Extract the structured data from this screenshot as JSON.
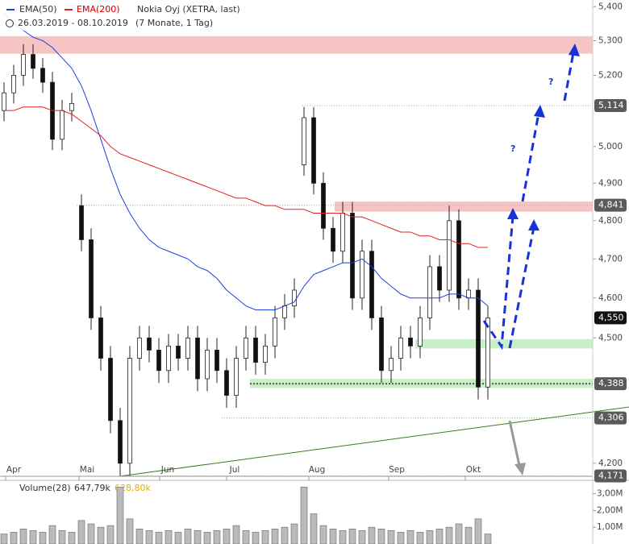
{
  "chart_data": {
    "type": "candlestick",
    "log_scale": true,
    "security": "Nokia Oyj (XETRA, last)",
    "period": "26.03.2019 - 08.10.2019",
    "duration": "(7 Monate, 1 Tag)",
    "months": [
      "Apr",
      "Mai",
      "Jun",
      "Jul",
      "Aug",
      "Sep",
      "Okt"
    ],
    "open": [
      5.1,
      5.15,
      5.2,
      5.26,
      5.22,
      5.18,
      5.02,
      5.1,
      4.84,
      4.75,
      4.55,
      4.45,
      4.3,
      4.2,
      4.45,
      4.5,
      4.47,
      4.42,
      4.48,
      4.45,
      4.5,
      4.4,
      4.47,
      4.42,
      4.36,
      4.45,
      4.5,
      4.44,
      4.48,
      4.55,
      4.58,
      4.95,
      5.08,
      4.9,
      4.78,
      4.72,
      4.82,
      4.6,
      4.72,
      4.55,
      4.42,
      4.45,
      4.5,
      4.48,
      4.55,
      4.68,
      4.62,
      4.8,
      4.6,
      4.62,
      4.38
    ],
    "high": [
      5.18,
      5.23,
      5.29,
      5.29,
      5.25,
      5.21,
      5.13,
      5.15,
      4.87,
      4.78,
      4.58,
      4.48,
      4.33,
      4.48,
      4.53,
      4.53,
      4.5,
      4.51,
      4.51,
      4.53,
      4.53,
      4.5,
      4.5,
      4.45,
      4.48,
      4.53,
      4.53,
      4.51,
      4.58,
      4.61,
      4.65,
      5.11,
      5.11,
      4.93,
      4.81,
      4.85,
      4.85,
      4.75,
      4.75,
      4.58,
      4.48,
      4.53,
      4.53,
      4.58,
      4.71,
      4.71,
      4.84,
      4.83,
      4.65,
      4.65,
      4.58
    ],
    "low": [
      5.07,
      5.12,
      5.17,
      5.19,
      5.15,
      4.99,
      4.99,
      5.07,
      4.72,
      4.52,
      4.42,
      4.27,
      4.17,
      4.17,
      4.42,
      4.44,
      4.39,
      4.39,
      4.42,
      4.42,
      4.37,
      4.37,
      4.39,
      4.33,
      4.33,
      4.42,
      4.41,
      4.41,
      4.45,
      4.52,
      4.55,
      4.92,
      4.87,
      4.75,
      4.69,
      4.69,
      4.57,
      4.57,
      4.52,
      4.39,
      4.39,
      4.42,
      4.45,
      4.45,
      4.52,
      4.59,
      4.59,
      4.57,
      4.57,
      4.35,
      4.35
    ],
    "close": [
      5.15,
      5.2,
      5.26,
      5.22,
      5.18,
      5.02,
      5.1,
      5.12,
      4.75,
      4.55,
      4.45,
      4.3,
      4.2,
      4.45,
      4.5,
      4.47,
      4.42,
      4.48,
      4.45,
      4.5,
      4.4,
      4.47,
      4.42,
      4.36,
      4.45,
      4.5,
      4.44,
      4.48,
      4.55,
      4.58,
      4.62,
      5.08,
      4.9,
      4.78,
      4.72,
      4.82,
      4.6,
      4.72,
      4.55,
      4.42,
      4.45,
      4.5,
      4.48,
      4.55,
      4.68,
      4.62,
      4.8,
      4.6,
      4.62,
      4.38,
      4.55
    ],
    "series": [
      {
        "name": "EMA(50)",
        "color": "#1f3fe0",
        "values": [
          5.38,
          5.35,
          5.33,
          5.31,
          5.3,
          5.28,
          5.25,
          5.22,
          5.17,
          5.1,
          5.02,
          4.94,
          4.87,
          4.82,
          4.78,
          4.75,
          4.73,
          4.72,
          4.71,
          4.7,
          4.68,
          4.67,
          4.65,
          4.62,
          4.6,
          4.58,
          4.57,
          4.57,
          4.57,
          4.58,
          4.59,
          4.63,
          4.66,
          4.67,
          4.68,
          4.69,
          4.69,
          4.7,
          4.68,
          4.65,
          4.63,
          4.61,
          4.6,
          4.6,
          4.6,
          4.6,
          4.61,
          4.61,
          4.6,
          4.6,
          4.58
        ]
      },
      {
        "name": "EMA(200)",
        "color": "#e02020",
        "values": [
          5.1,
          5.1,
          5.11,
          5.11,
          5.11,
          5.1,
          5.1,
          5.09,
          5.07,
          5.05,
          5.03,
          5.0,
          4.98,
          4.97,
          4.96,
          4.95,
          4.94,
          4.93,
          4.92,
          4.91,
          4.9,
          4.89,
          4.88,
          4.87,
          4.86,
          4.86,
          4.85,
          4.84,
          4.84,
          4.83,
          4.83,
          4.83,
          4.82,
          4.82,
          4.82,
          4.82,
          4.81,
          4.81,
          4.8,
          4.79,
          4.78,
          4.77,
          4.77,
          4.76,
          4.76,
          4.75,
          4.75,
          4.74,
          4.74,
          4.73,
          4.73
        ]
      }
    ],
    "ylim": [
      4.17,
      5.42
    ],
    "yticks": [
      {
        "value": 4.2,
        "label": "4,200"
      },
      {
        "value": 4.5,
        "label": "4,500"
      },
      {
        "value": 4.6,
        "label": "4,600"
      },
      {
        "value": 4.7,
        "label": "4,700"
      },
      {
        "value": 4.8,
        "label": "4,800"
      },
      {
        "value": 4.9,
        "label": "4,900"
      },
      {
        "value": 5.0,
        "label": "5,000"
      },
      {
        "value": 5.2,
        "label": "5,200"
      },
      {
        "value": 5.3,
        "label": "5,300"
      },
      {
        "value": 5.4,
        "label": "5,400"
      }
    ],
    "zones": [
      {
        "from": 5.262,
        "to": 5.313,
        "color": "#f7c4c4"
      },
      {
        "from": 4.824,
        "to": 4.851,
        "color": "#f7c4c4"
      },
      {
        "from": 4.474,
        "to": 4.497,
        "color": "#c8efc8"
      },
      {
        "from": 4.378,
        "to": 4.4,
        "color": "#c8efc8"
      }
    ],
    "levels": [
      {
        "value": 5.114,
        "label": "5,114"
      },
      {
        "value": 4.841,
        "label": "4,841"
      },
      {
        "value": 4.388,
        "label": "4,388"
      },
      {
        "value": 4.306,
        "label": "4,306"
      },
      {
        "value": 4.171,
        "label": "4,171"
      }
    ],
    "last": {
      "value": 4.55,
      "label": "4,550"
    },
    "question_marks": [
      "?",
      "?"
    ],
    "volume": {
      "label": "Volume(28)",
      "last": "647,79k",
      "average": "628,80k",
      "values": [
        0.6,
        0.7,
        0.9,
        0.8,
        0.7,
        1.1,
        0.8,
        0.7,
        1.4,
        1.2,
        1.0,
        1.1,
        3.4,
        1.5,
        0.9,
        0.8,
        0.7,
        0.8,
        0.7,
        0.9,
        0.8,
        0.7,
        0.8,
        0.9,
        1.1,
        0.8,
        0.7,
        0.8,
        0.9,
        1.0,
        1.2,
        3.4,
        1.8,
        1.1,
        0.9,
        0.8,
        0.9,
        0.8,
        1.0,
        0.9,
        0.8,
        0.7,
        0.8,
        0.7,
        0.8,
        0.9,
        1.0,
        1.2,
        1.0,
        1.5,
        0.6
      ],
      "ylim": [
        0,
        3.7
      ],
      "yticks": [
        {
          "value": 1,
          "label": "1,00M"
        },
        {
          "value": 2,
          "label": "2,00M"
        },
        {
          "value": 3,
          "label": "3,00M"
        }
      ]
    }
  }
}
